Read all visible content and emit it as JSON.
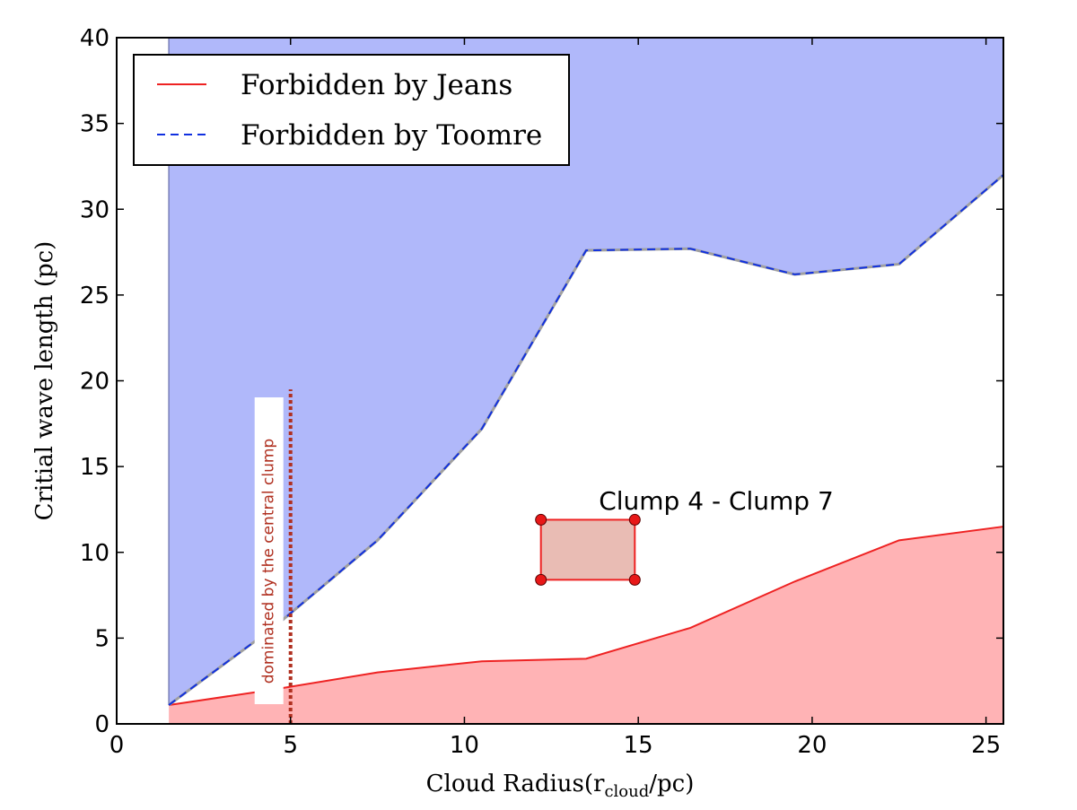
{
  "chart_data": {
    "type": "area",
    "xlabel": "Cloud Radius(r",
    "xlabel_sub": "cloud",
    "xlabel_tail": "/pc)",
    "ylabel": "Critial wave length  (pc)",
    "xlim": [
      0,
      25.5
    ],
    "ylim": [
      0,
      40
    ],
    "xticks": [
      0,
      5,
      10,
      15,
      20,
      25
    ],
    "yticks": [
      0,
      5,
      10,
      15,
      20,
      25,
      30,
      35,
      40
    ],
    "grid": false,
    "legend_position": "top-left",
    "series": [
      {
        "name": "Forbidden by Jeans",
        "style": "solid",
        "color": "#ee2222",
        "fill": "#ffb3b5",
        "fill_region": "below",
        "x": [
          1.5,
          4.5,
          7.5,
          10.5,
          13.5,
          16.5,
          19.5,
          22.5,
          25.5
        ],
        "y": [
          1.1,
          2.0,
          3.0,
          3.65,
          3.8,
          5.6,
          8.3,
          10.7,
          11.5
        ]
      },
      {
        "name": "Forbidden by Toomre",
        "style": "dashed",
        "color": "#1030e0",
        "fill": "#b0b8fa",
        "fill_region": "above",
        "x": [
          1.5,
          4.5,
          7.5,
          10.5,
          13.5,
          16.5,
          19.5,
          22.5,
          25.5
        ],
        "y": [
          1.1,
          5.6,
          10.7,
          17.2,
          27.6,
          27.7,
          26.2,
          26.8,
          32.0
        ]
      }
    ],
    "vertical_line": {
      "x": 5,
      "y_range": [
        0,
        19.5
      ],
      "style": "dotted",
      "color": "#b03020",
      "label": "dominated by the central clump"
    },
    "annotation_box": {
      "label": "Clump 4 - Clump 7",
      "x_range": [
        12.2,
        14.9
      ],
      "y_range": [
        8.4,
        11.9
      ],
      "fill": "#e9bcb4",
      "edge_color": "#ee2222"
    }
  }
}
